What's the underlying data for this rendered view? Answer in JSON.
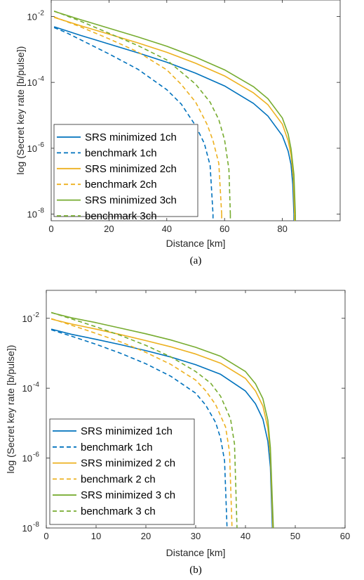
{
  "chart_data": [
    {
      "type": "line",
      "caption": "(a)",
      "xlabel": "Distance [km]",
      "ylabel": "log (Secret key rate [b/pulse])",
      "xlim": [
        0,
        100
      ],
      "ylim_log10": [
        -8.2,
        -1.5
      ],
      "x_ticks": [
        0,
        20,
        40,
        60,
        80
      ],
      "y_ticks": [
        {
          "base": "10",
          "exp": "-2",
          "value": 0.01
        },
        {
          "base": "10",
          "exp": "-4",
          "value": 0.0001
        },
        {
          "base": "10",
          "exp": "-6",
          "value": 1e-06
        },
        {
          "base": "10",
          "exp": "-8",
          "value": 1e-08
        }
      ],
      "grid": false,
      "legend_position": "bottom-left",
      "series": [
        {
          "name": "SRS minimized 1ch",
          "color": "#0072BD",
          "dash": false,
          "x": [
            1,
            10,
            20,
            30,
            40,
            50,
            60,
            70,
            75,
            80,
            82,
            83,
            83.6,
            84
          ],
          "y": [
            0.0049,
            0.0027,
            0.00146,
            0.00079,
            0.00041,
            0.00019,
            7.8e-05,
            2.3e-05,
            9.5e-06,
            2.4e-06,
            8.2e-07,
            3.2e-07,
            8e-08,
            1e-08
          ]
        },
        {
          "name": "benchmark 1ch",
          "color": "#0072BD",
          "dash": true,
          "x": [
            1,
            5,
            10,
            20,
            30,
            40,
            45,
            50,
            53,
            55,
            56
          ],
          "y": [
            0.0046,
            0.0033,
            0.002,
            0.00073,
            0.00025,
            6e-05,
            2.2e-05,
            4.8e-06,
            1.4e-06,
            3e-07,
            1e-08
          ]
        },
        {
          "name": "SRS minimized 2ch",
          "color": "#EDB120",
          "dash": false,
          "x": [
            1,
            10,
            20,
            30,
            40,
            50,
            60,
            70,
            75,
            80,
            82,
            83,
            83.8,
            84.2
          ],
          "y": [
            0.0094,
            0.0053,
            0.0029,
            0.00158,
            0.00082,
            0.00038,
            0.000157,
            4.8e-05,
            2.1e-05,
            5.4e-06,
            1.7e-06,
            6.3e-07,
            1.3e-07,
            1e-08
          ]
        },
        {
          "name": "benchmark 2ch",
          "color": "#EDB120",
          "dash": true,
          "x": [
            1,
            10,
            20,
            30,
            40,
            45,
            50,
            54,
            56,
            58,
            59
          ],
          "y": [
            0.0097,
            0.0049,
            0.0021,
            0.00084,
            0.00024,
            8.7e-05,
            2.5e-05,
            5.2e-06,
            1.7e-06,
            3.5e-07,
            1e-08
          ]
        },
        {
          "name": "SRS minimized 3ch",
          "color": "#77AC30",
          "dash": false,
          "x": [
            1,
            10,
            20,
            30,
            40,
            50,
            60,
            70,
            75,
            80,
            82,
            83,
            84,
            84.5
          ],
          "y": [
            0.0143,
            0.0081,
            0.0044,
            0.0024,
            0.00125,
            0.00058,
            0.00024,
            7.4e-05,
            3.2e-05,
            8.3e-06,
            2.7e-06,
            9.7e-07,
            1.6e-07,
            1e-08
          ]
        },
        {
          "name": "benchmark 3ch",
          "color": "#77AC30",
          "dash": true,
          "x": [
            1,
            10,
            20,
            30,
            40,
            50,
            55,
            58,
            60,
            61.5,
            62
          ],
          "y": [
            0.0146,
            0.0073,
            0.0031,
            0.00131,
            0.00048,
            8.8e-05,
            2.5e-05,
            7.4e-06,
            1.8e-06,
            2.3e-07,
            1e-08
          ]
        }
      ]
    },
    {
      "type": "line",
      "caption": "(b)",
      "xlabel": "Distance [km]",
      "ylabel": "log (Secret key rate [b/pulse])",
      "xlim": [
        0,
        60
      ],
      "ylim_log10": [
        -8,
        -1.2
      ],
      "x_ticks": [
        0,
        10,
        20,
        30,
        40,
        50,
        60
      ],
      "y_ticks": [
        {
          "base": "10",
          "exp": "-2",
          "value": 0.01
        },
        {
          "base": "10",
          "exp": "-4",
          "value": 0.0001
        },
        {
          "base": "10",
          "exp": "-6",
          "value": 1e-06
        },
        {
          "base": "10",
          "exp": "-8",
          "value": 1e-08
        }
      ],
      "grid": false,
      "legend_position": "bottom-left",
      "series": [
        {
          "name": "SRS minimized 1ch",
          "color": "#0072BD",
          "dash": false,
          "x": [
            1,
            5,
            10,
            15,
            20,
            25,
            30,
            35,
            40,
            42,
            43.5,
            44.5,
            45,
            45.4
          ],
          "y": [
            0.0049,
            0.0035,
            0.0025,
            0.00175,
            0.00119,
            0.00078,
            0.00047,
            0.00025,
            8.3e-05,
            3.6e-05,
            1.3e-05,
            3e-06,
            5.5e-07,
            1e-08
          ]
        },
        {
          "name": "benchmark 1ch",
          "color": "#0072BD",
          "dash": true,
          "x": [
            1,
            5,
            10,
            15,
            20,
            25,
            30,
            32,
            34,
            35,
            35.8,
            36.3
          ],
          "y": [
            0.0047,
            0.0031,
            0.0018,
            0.00099,
            0.0005,
            0.00022,
            7.2e-05,
            3.3e-05,
            1.05e-05,
            3.7e-06,
            8.4e-07,
            1e-08
          ]
        },
        {
          "name": "SRS minimized 2 ch",
          "color": "#EDB120",
          "dash": false,
          "x": [
            1,
            5,
            10,
            15,
            20,
            25,
            30,
            35,
            40,
            42,
            43.5,
            44.5,
            45,
            45.5
          ],
          "y": [
            0.0095,
            0.0069,
            0.0049,
            0.0034,
            0.0023,
            0.00153,
            0.00095,
            0.00052,
            0.00019,
            8.4e-05,
            3.1e-05,
            7.2e-06,
            1.2e-06,
            1e-08
          ]
        },
        {
          "name": "benchmark 2 ch",
          "color": "#EDB120",
          "dash": true,
          "x": [
            1,
            5,
            10,
            15,
            20,
            25,
            30,
            32,
            34,
            36,
            36.8,
            37.3
          ],
          "y": [
            0.0098,
            0.0064,
            0.0037,
            0.0021,
            0.00106,
            0.00048,
            0.00017,
            8.5e-05,
            3.4e-05,
            7.8e-06,
            1.5e-06,
            1e-08
          ]
        },
        {
          "name": "SRS minimized 3 ch",
          "color": "#77AC30",
          "dash": false,
          "x": [
            1,
            5,
            10,
            15,
            20,
            25,
            30,
            35,
            40,
            42,
            43.5,
            44.5,
            45,
            45.6
          ],
          "y": [
            0.0145,
            0.0104,
            0.0075,
            0.0052,
            0.0036,
            0.0024,
            0.00148,
            0.00082,
            0.0003,
            0.000135,
            5e-05,
            1.2e-05,
            2e-06,
            1e-08
          ]
        },
        {
          "name": "benchmark 3 ch",
          "color": "#77AC30",
          "dash": true,
          "x": [
            1,
            5,
            10,
            15,
            20,
            25,
            30,
            33,
            35,
            37,
            37.8,
            38.3
          ],
          "y": [
            0.0147,
            0.0097,
            0.0057,
            0.0032,
            0.00168,
            0.00079,
            0.0003,
            0.00014,
            5.9e-05,
            1.32e-05,
            2.5e-06,
            1e-08
          ]
        }
      ]
    }
  ]
}
